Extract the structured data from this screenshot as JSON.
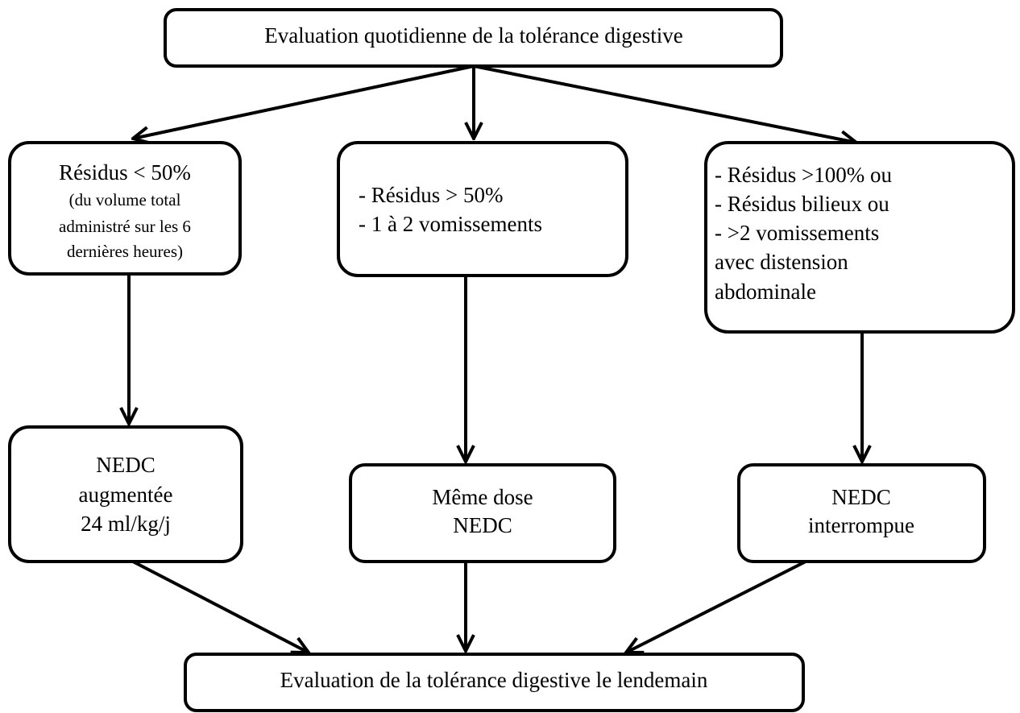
{
  "nodes": [
    {
      "lines": [
        "Evaluation quotidienne de la tolérance digestive"
      ]
    },
    {
      "lines": [
        "Résidus < 50%"
      ],
      "note": [
        "(du volume total",
        "administré sur les 6",
        "dernières heures)"
      ]
    },
    {
      "lines": [
        "- Résidus > 50%",
        "- 1 à 2 vomissements"
      ]
    },
    {
      "lines": [
        "- Résidus >100% ou",
        "- Résidus bilieux ou",
        "- >2 vomissements",
        "avec distension",
        "abdominale"
      ]
    },
    {
      "lines": [
        "NEDC",
        "augmentée",
        "24 ml/kg/j"
      ]
    },
    {
      "lines": [
        "Même dose",
        "NEDC"
      ]
    },
    {
      "lines": [
        "NEDC",
        "interrompue"
      ]
    },
    {
      "lines": [
        "Evaluation de la tolérance digestive le lendemain"
      ]
    }
  ]
}
